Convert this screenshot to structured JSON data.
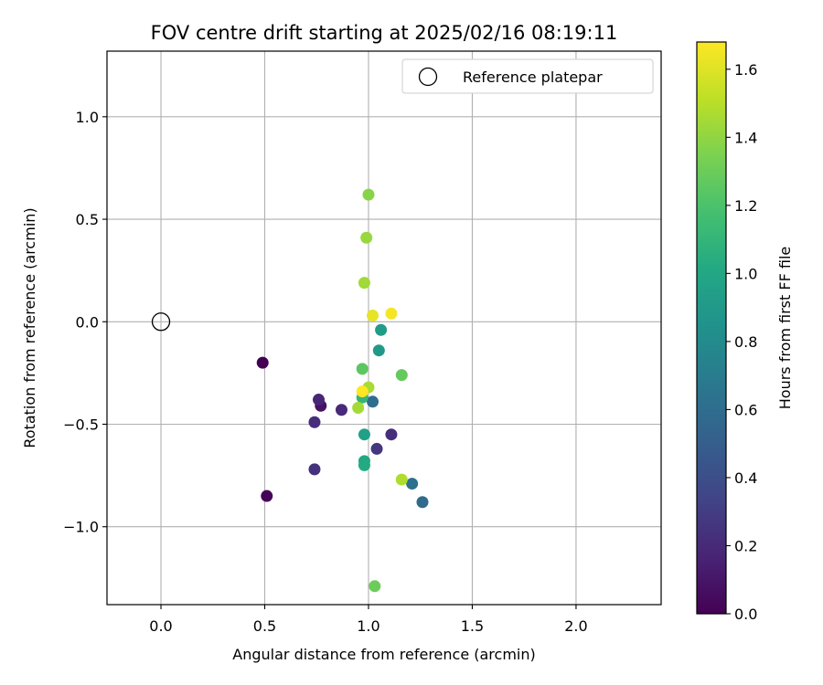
{
  "chart_data": {
    "type": "scatter",
    "title": "FOV centre drift starting at 2025/02/16 08:19:11",
    "xlabel": "Angular distance from reference (arcmin)",
    "ylabel": "Rotation from reference (arcmin)",
    "xlim": [
      -0.26,
      2.41
    ],
    "ylim": [
      -1.38,
      1.32
    ],
    "xticks": [
      "0.0",
      "0.5",
      "1.0",
      "1.5",
      "2.0"
    ],
    "yticks": [
      "1.0",
      "0.5",
      "0.0",
      "−0.5",
      "−1.0"
    ],
    "grid": true,
    "legend": {
      "placement": "top-right",
      "entries": [
        {
          "label": "Reference platepar",
          "marker": "open-circle"
        }
      ]
    },
    "reference_point": {
      "x": 0.0,
      "y": 0.0
    },
    "colormap": "viridis",
    "colorbar": {
      "label": "Hours from first FF file",
      "range": [
        0.0,
        1.68
      ],
      "ticks": [
        "0.0",
        "0.2",
        "0.4",
        "0.6",
        "0.8",
        "1.0",
        "1.2",
        "1.4",
        "1.6"
      ]
    },
    "points": [
      {
        "x": 0.49,
        "y": -0.2,
        "hours": 0.0
      },
      {
        "x": 0.51,
        "y": -0.85,
        "hours": 0.02
      },
      {
        "x": 0.77,
        "y": -0.41,
        "hours": 0.08
      },
      {
        "x": 0.76,
        "y": -0.38,
        "hours": 0.18
      },
      {
        "x": 0.74,
        "y": -0.49,
        "hours": 0.22
      },
      {
        "x": 0.87,
        "y": -0.43,
        "hours": 0.2
      },
      {
        "x": 0.74,
        "y": -0.72,
        "hours": 0.24
      },
      {
        "x": 1.11,
        "y": -0.55,
        "hours": 0.22
      },
      {
        "x": 1.04,
        "y": -0.62,
        "hours": 0.26
      },
      {
        "x": 1.02,
        "y": -0.39,
        "hours": 0.6
      },
      {
        "x": 1.21,
        "y": -0.79,
        "hours": 0.62
      },
      {
        "x": 1.26,
        "y": -0.88,
        "hours": 0.58
      },
      {
        "x": 1.05,
        "y": -0.14,
        "hours": 0.9
      },
      {
        "x": 1.06,
        "y": -0.04,
        "hours": 0.92
      },
      {
        "x": 0.98,
        "y": -0.55,
        "hours": 0.95
      },
      {
        "x": 0.98,
        "y": -0.68,
        "hours": 1.0
      },
      {
        "x": 0.98,
        "y": -0.7,
        "hours": 1.02
      },
      {
        "x": 0.97,
        "y": -0.37,
        "hours": 1.1
      },
      {
        "x": 0.97,
        "y": -0.23,
        "hours": 1.25
      },
      {
        "x": 1.16,
        "y": -0.26,
        "hours": 1.28
      },
      {
        "x": 1.03,
        "y": -1.29,
        "hours": 1.3
      },
      {
        "x": 1.0,
        "y": 0.62,
        "hours": 1.38
      },
      {
        "x": 0.99,
        "y": 0.41,
        "hours": 1.42
      },
      {
        "x": 0.98,
        "y": 0.19,
        "hours": 1.44
      },
      {
        "x": 0.95,
        "y": -0.42,
        "hours": 1.45
      },
      {
        "x": 1.0,
        "y": -0.32,
        "hours": 1.46
      },
      {
        "x": 1.16,
        "y": -0.77,
        "hours": 1.48
      },
      {
        "x": 1.02,
        "y": 0.03,
        "hours": 1.62
      },
      {
        "x": 1.11,
        "y": 0.04,
        "hours": 1.66
      },
      {
        "x": 0.97,
        "y": -0.34,
        "hours": 1.68
      }
    ]
  }
}
